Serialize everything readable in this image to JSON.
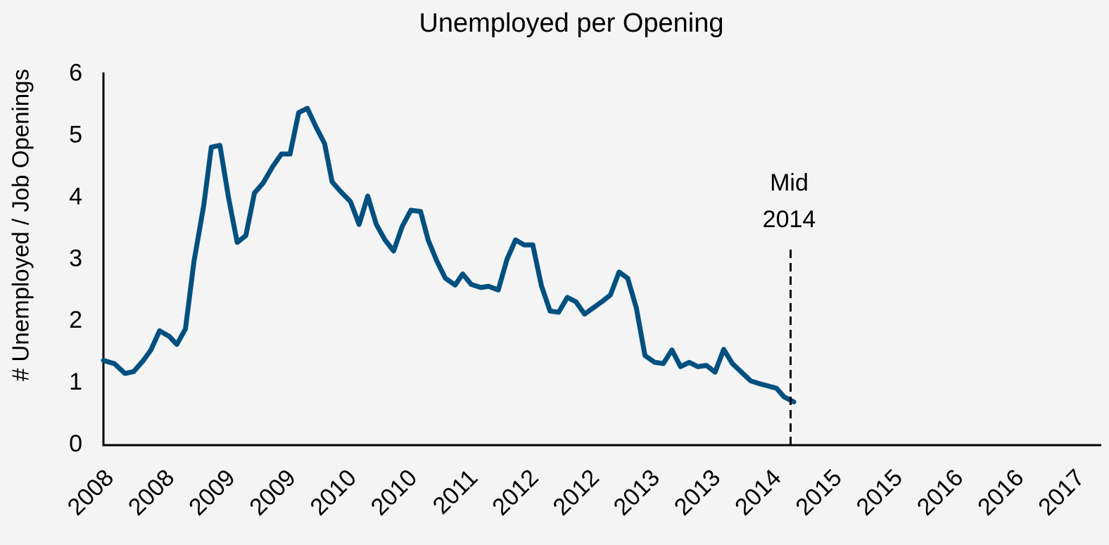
{
  "chart_data": {
    "type": "line",
    "title": "Unemployed per Opening",
    "y_label": "# Unemployed / Job Openings",
    "ylim": [
      0,
      6.03
    ],
    "yticks": [
      0,
      1,
      2,
      3,
      4,
      5,
      6
    ],
    "xlim": [
      2008,
      2017.25
    ],
    "xticks": [
      {
        "value": 2008,
        "label": "2008"
      },
      {
        "value": 2008.5625,
        "label": "2008"
      },
      {
        "value": 2009.125,
        "label": "2009"
      },
      {
        "value": 2009.6875,
        "label": "2009"
      },
      {
        "value": 2010.25,
        "label": "2010"
      },
      {
        "value": 2010.8125,
        "label": "2010"
      },
      {
        "value": 2011.375,
        "label": "2011"
      },
      {
        "value": 2011.9375,
        "label": "2012"
      },
      {
        "value": 2012.5,
        "label": "2012"
      },
      {
        "value": 2013.0625,
        "label": "2013"
      },
      {
        "value": 2013.625,
        "label": "2013"
      },
      {
        "value": 2014.1875,
        "label": "2014"
      },
      {
        "value": 2014.75,
        "label": "2015"
      },
      {
        "value": 2015.3125,
        "label": "2015"
      },
      {
        "value": 2015.875,
        "label": "2016"
      },
      {
        "value": 2016.4375,
        "label": "2016"
      },
      {
        "value": 2017,
        "label": "2017"
      }
    ],
    "grid": false,
    "series": [
      {
        "color": "#02507f",
        "x": [
          2008.0,
          2008.1,
          2008.2,
          2008.28,
          2008.37,
          2008.44,
          2008.52,
          2008.61,
          2008.68,
          2008.76,
          2008.84,
          2008.93,
          2009.0,
          2009.08,
          2009.16,
          2009.24,
          2009.32,
          2009.4,
          2009.48,
          2009.57,
          2009.65,
          2009.73,
          2009.81,
          2009.89,
          2009.97,
          2010.05,
          2010.12,
          2010.2,
          2010.29,
          2010.37,
          2010.45,
          2010.53,
          2010.61,
          2010.69,
          2010.77,
          2010.85,
          2010.94,
          2011.01,
          2011.09,
          2011.17,
          2011.26,
          2011.33,
          2011.41,
          2011.5,
          2011.57,
          2011.66,
          2011.74,
          2011.82,
          2011.9,
          2011.98,
          2012.06,
          2012.14,
          2012.22,
          2012.3,
          2012.38,
          2012.46,
          2012.54,
          2012.62,
          2012.7,
          2012.78,
          2012.86,
          2012.94,
          2013.02,
          2013.11,
          2013.19,
          2013.27,
          2013.35,
          2013.43,
          2013.51,
          2013.59,
          2013.67,
          2013.75,
          2013.83,
          2014.0,
          2014.07,
          2014.24,
          2014.31,
          2014.4
        ],
        "values": [
          1.37,
          1.32,
          1.16,
          1.19,
          1.37,
          1.54,
          1.85,
          1.76,
          1.63,
          1.88,
          2.98,
          3.88,
          4.82,
          4.85,
          4.0,
          3.28,
          3.39,
          4.08,
          4.24,
          4.51,
          4.71,
          4.71,
          5.38,
          5.45,
          5.15,
          4.88,
          4.26,
          4.1,
          3.94,
          3.57,
          4.03,
          3.57,
          3.32,
          3.14,
          3.54,
          3.8,
          3.78,
          3.32,
          2.98,
          2.7,
          2.59,
          2.77,
          2.6,
          2.55,
          2.57,
          2.51,
          3.0,
          3.32,
          3.24,
          3.24,
          2.58,
          2.17,
          2.15,
          2.39,
          2.32,
          2.12,
          2.22,
          2.32,
          2.43,
          2.8,
          2.7,
          2.22,
          1.45,
          1.34,
          1.32,
          1.54,
          1.27,
          1.34,
          1.27,
          1.29,
          1.18,
          1.55,
          1.32,
          1.04,
          1.0,
          0.92,
          0.78,
          0.7
        ]
      }
    ],
    "annotation": {
      "text": [
        "Mid",
        "2014"
      ],
      "x": 2014.37
    }
  }
}
